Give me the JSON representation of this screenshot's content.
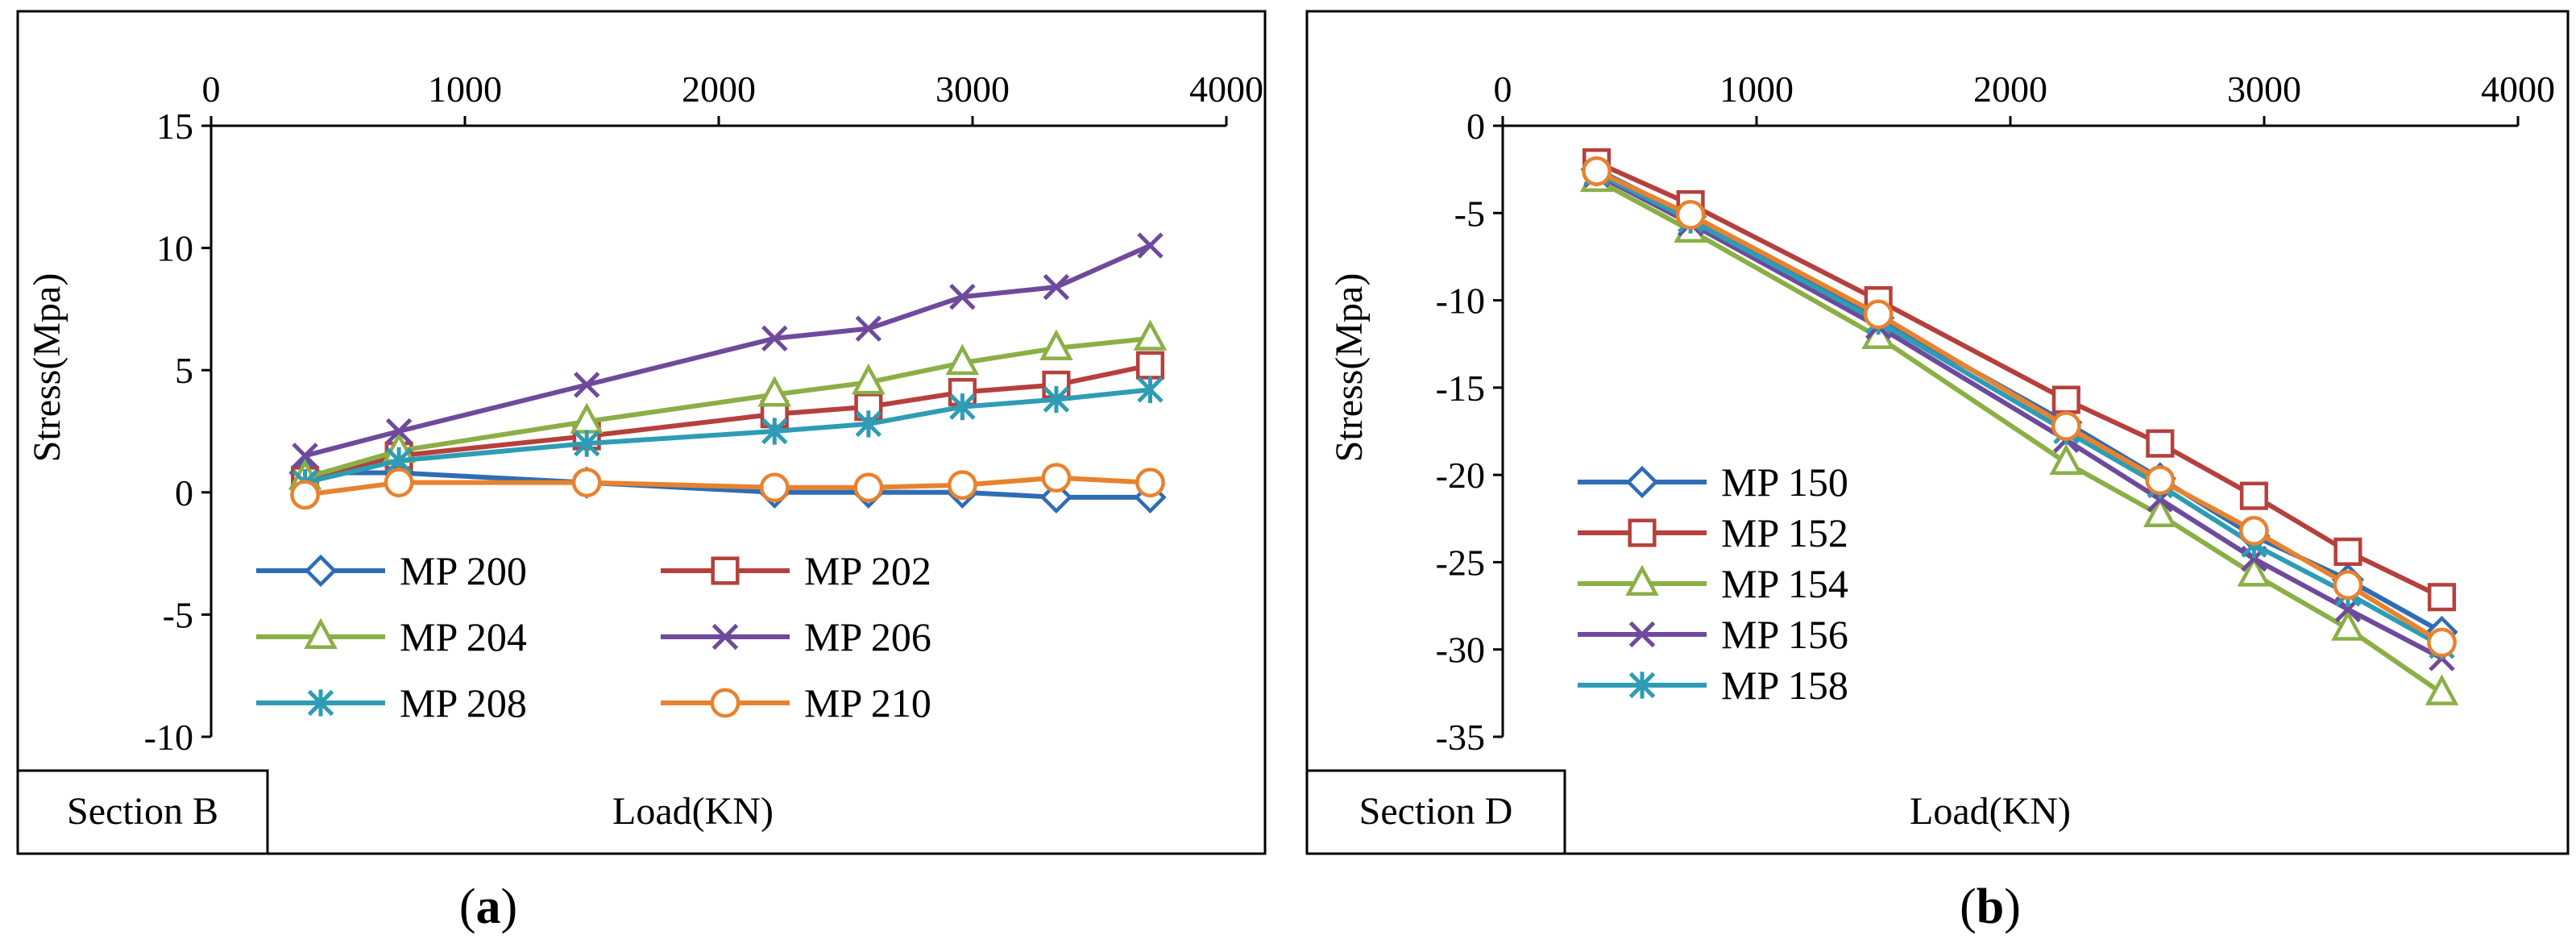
{
  "panels": [
    {
      "section_label": "Section B",
      "xlabel": "Load(KN)",
      "ylabel": "Stress(Mpa)",
      "caption_open": "(",
      "caption_letter": "a",
      "caption_close": ")"
    },
    {
      "section_label": "Section D",
      "xlabel": "Load(KN)",
      "ylabel": "Stress(Mpa)",
      "caption_open": "(",
      "caption_letter": "b",
      "caption_close": ")"
    }
  ],
  "chart_data": [
    {
      "type": "line",
      "title": "",
      "xlabel": "Load(KN)",
      "ylabel": "Stress(Mpa)",
      "xlim": [
        0,
        4000
      ],
      "ylim": [
        -10,
        15
      ],
      "xticks": [
        0,
        1000,
        2000,
        3000,
        4000
      ],
      "yticks": [
        15,
        10,
        5,
        0,
        -5,
        -10
      ],
      "x_axis_position": "top",
      "grid": false,
      "legend_position": "bottom",
      "legend_columns": 2,
      "x": [
        370,
        740,
        1480,
        2220,
        2590,
        2960,
        3330,
        3700
      ],
      "series": [
        {
          "name": "MP 200",
          "color": "#2E6DB4",
          "marker": "diamond",
          "values": [
            0.8,
            0.8,
            0.4,
            0.0,
            0.0,
            0.0,
            -0.2,
            -0.2
          ]
        },
        {
          "name": "MP 202",
          "color": "#B5403C",
          "marker": "square",
          "values": [
            0.5,
            1.5,
            2.3,
            3.2,
            3.5,
            4.1,
            4.4,
            5.2
          ]
        },
        {
          "name": "MP 204",
          "color": "#8BAF46",
          "marker": "triangle",
          "values": [
            0.6,
            1.7,
            2.9,
            4.0,
            4.5,
            5.3,
            5.9,
            6.3
          ]
        },
        {
          "name": "MP 206",
          "color": "#6E4A9C",
          "marker": "x",
          "values": [
            1.5,
            2.5,
            4.4,
            6.3,
            6.7,
            8.0,
            8.4,
            10.1
          ]
        },
        {
          "name": "MP 208",
          "color": "#2E9CB4",
          "marker": "asterisk",
          "values": [
            0.4,
            1.3,
            2.0,
            2.5,
            2.8,
            3.5,
            3.8,
            4.2
          ]
        },
        {
          "name": "MP 210",
          "color": "#E8822E",
          "marker": "circle",
          "values": [
            -0.1,
            0.4,
            0.4,
            0.2,
            0.2,
            0.3,
            0.6,
            0.4
          ]
        }
      ]
    },
    {
      "type": "line",
      "title": "",
      "xlabel": "Load(KN)",
      "ylabel": "Stress(Mpa)",
      "xlim": [
        0,
        4000
      ],
      "ylim": [
        -35,
        0
      ],
      "xticks": [
        0,
        1000,
        2000,
        3000,
        4000
      ],
      "yticks": [
        0,
        -5,
        -10,
        -15,
        -20,
        -25,
        -30,
        -35
      ],
      "x_axis_position": "top",
      "grid": false,
      "legend_position": "bottom-left",
      "legend_columns": 1,
      "x": [
        370,
        740,
        1480,
        2220,
        2590,
        2960,
        3330,
        3700
      ],
      "series": [
        {
          "name": "MP 150",
          "color": "#2E6DB4",
          "marker": "diamond",
          "values": [
            -2.5,
            -5.2,
            -11.0,
            -17.0,
            -20.2,
            -23.5,
            -26.0,
            -29.0
          ]
        },
        {
          "name": "MP 152",
          "color": "#B5403C",
          "marker": "square",
          "values": [
            -2.1,
            -4.5,
            -10.0,
            -15.7,
            -18.2,
            -21.2,
            -24.4,
            -27.0
          ]
        },
        {
          "name": "MP 154",
          "color": "#8BAF46",
          "marker": "triangle",
          "values": [
            -3.1,
            -6.0,
            -12.1,
            -19.3,
            -22.3,
            -25.7,
            -28.8,
            -32.5
          ]
        },
        {
          "name": "MP 156",
          "color": "#6E4A9C",
          "marker": "x",
          "values": [
            -2.8,
            -5.6,
            -11.5,
            -18.0,
            -21.4,
            -24.8,
            -27.7,
            -30.5
          ]
        },
        {
          "name": "MP 158",
          "color": "#2E9CB4",
          "marker": "asterisk",
          "values": [
            -2.7,
            -5.4,
            -11.2,
            -17.5,
            -20.6,
            -24.0,
            -26.8,
            -29.8
          ]
        },
        {
          "name": "",
          "color": "#E8822E",
          "marker": "circle",
          "values": [
            -2.6,
            -5.1,
            -10.8,
            -17.2,
            -20.3,
            -23.2,
            -26.3,
            -29.6
          ]
        }
      ]
    }
  ]
}
